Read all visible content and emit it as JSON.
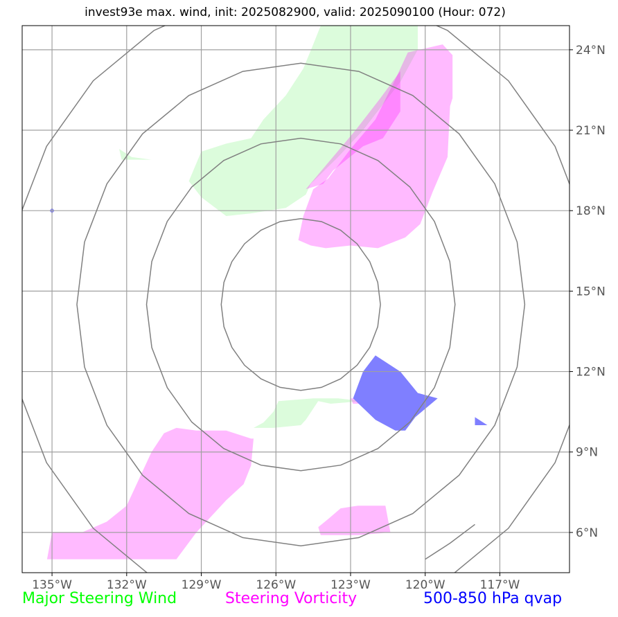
{
  "title": "invest93e max. wind, init: 2025082900, valid: 2025090100 (Hour: 072)",
  "map": {
    "lon_range": [
      -136.2,
      -114.2
    ],
    "lat_range": [
      4.5,
      24.9
    ],
    "lon_ticks": [
      {
        "value": -135,
        "label": "135°W"
      },
      {
        "value": -132,
        "label": "132°W"
      },
      {
        "value": -129,
        "label": "129°W"
      },
      {
        "value": -126,
        "label": "126°W"
      },
      {
        "value": -123,
        "label": "123°W"
      },
      {
        "value": -120,
        "label": "120°W"
      },
      {
        "value": -117,
        "label": "117°W"
      }
    ],
    "lat_ticks": [
      {
        "value": 24,
        "label": "24°N"
      },
      {
        "value": 21,
        "label": "21°N"
      },
      {
        "value": 18,
        "label": "18°N"
      },
      {
        "value": 15,
        "label": "15°N"
      },
      {
        "value": 12,
        "label": "12°N"
      },
      {
        "value": 9,
        "label": "9°N"
      },
      {
        "value": 6,
        "label": "6°N"
      }
    ],
    "range_rings": {
      "center": [
        -125.0,
        14.5
      ],
      "radii_deg": [
        3.2,
        6.2,
        9.0,
        11.8
      ],
      "color": "#808080"
    },
    "layers": [
      {
        "name": "Major Steering Wind",
        "color": "#00ff00",
        "fill": "#dcfcdc",
        "polygons": [
          [
            [
              -124.2,
              24.9
            ],
            [
              -120.3,
              24.9
            ],
            [
              -120.3,
              24.0
            ],
            [
              -121.0,
              22.8
            ],
            [
              -122.5,
              21.0
            ],
            [
              -123.5,
              20.0
            ],
            [
              -124.6,
              19.0
            ],
            [
              -124.8,
              18.6
            ],
            [
              -125.6,
              18.1
            ],
            [
              -127.0,
              17.9
            ],
            [
              -128.0,
              17.8
            ],
            [
              -129.0,
              18.5
            ],
            [
              -129.5,
              19.1
            ],
            [
              -129.0,
              20.2
            ],
            [
              -128.0,
              20.5
            ],
            [
              -127.0,
              20.7
            ],
            [
              -126.5,
              21.4
            ],
            [
              -125.6,
              22.3
            ],
            [
              -124.9,
              23.3
            ],
            [
              -124.5,
              24.2
            ]
          ],
          [
            [
              -132.3,
              20.3
            ],
            [
              -131.8,
              20.0
            ],
            [
              -131.0,
              19.9
            ],
            [
              -132.2,
              19.9
            ]
          ],
          [
            [
              -125.9,
              10.9
            ],
            [
              -124.5,
              11.0
            ],
            [
              -123.5,
              11.0
            ],
            [
              -122.5,
              10.9
            ],
            [
              -123.8,
              10.8
            ],
            [
              -124.3,
              10.9
            ],
            [
              -124.8,
              10.2
            ],
            [
              -125.0,
              10.0
            ],
            [
              -126.1,
              9.9
            ],
            [
              -126.9,
              9.9
            ],
            [
              -126.5,
              10.1
            ],
            [
              -126.1,
              10.5
            ]
          ]
        ]
      },
      {
        "name": "Steering Vorticity",
        "color": "#ff00ff",
        "fill": "#ff00ff",
        "opacity": 0.27,
        "polygons": [
          [
            [
              -120.7,
              23.9
            ],
            [
              -119.3,
              24.2
            ],
            [
              -118.9,
              23.8
            ],
            [
              -118.9,
              22.2
            ],
            [
              -119.0,
              21.9
            ],
            [
              -119.1,
              20.0
            ],
            [
              -119.7,
              18.7
            ],
            [
              -120.2,
              17.5
            ],
            [
              -120.8,
              17.0
            ],
            [
              -121.9,
              16.6
            ],
            [
              -123.0,
              16.7
            ],
            [
              -124.0,
              16.6
            ],
            [
              -124.6,
              16.7
            ],
            [
              -125.1,
              16.9
            ],
            [
              -124.9,
              17.8
            ],
            [
              -124.5,
              18.8
            ],
            [
              -123.9,
              19.2
            ],
            [
              -123.0,
              20.3
            ],
            [
              -122.0,
              21.4
            ],
            [
              -121.2,
              22.9
            ]
          ],
          [
            [
              -121.0,
              23.2
            ],
            [
              -121.0,
              21.7
            ],
            [
              -121.7,
              20.7
            ],
            [
              -122.5,
              20.4
            ],
            [
              -123.7,
              19.5
            ],
            [
              -124.1,
              19.0
            ],
            [
              -124.8,
              18.8
            ],
            [
              -123.8,
              19.9
            ],
            [
              -122.8,
              21.0
            ],
            [
              -121.8,
              22.2
            ]
          ],
          [
            [
              -135.2,
              5.0
            ],
            [
              -132.9,
              5.0
            ],
            [
              -131.2,
              5.0
            ],
            [
              -130.0,
              5.0
            ],
            [
              -129.6,
              5.5
            ],
            [
              -129.2,
              6.0
            ],
            [
              -128.0,
              7.2
            ],
            [
              -127.3,
              7.8
            ],
            [
              -127.0,
              8.5
            ],
            [
              -126.9,
              9.5
            ],
            [
              -127.0,
              9.5
            ],
            [
              -128.0,
              9.8
            ],
            [
              -129.2,
              9.8
            ],
            [
              -130.0,
              9.9
            ],
            [
              -130.5,
              9.7
            ],
            [
              -131.0,
              9.0
            ],
            [
              -132.0,
              7.0
            ],
            [
              -132.8,
              6.4
            ],
            [
              -133.8,
              6.0
            ],
            [
              -135.0,
              6.0
            ]
          ],
          [
            [
              -124.2,
              5.9
            ],
            [
              -123.1,
              5.9
            ],
            [
              -122.7,
              5.9
            ],
            [
              -121.4,
              6.0
            ],
            [
              -121.6,
              7.0
            ],
            [
              -122.7,
              7.0
            ],
            [
              -123.4,
              6.9
            ],
            [
              -123.9,
              6.5
            ],
            [
              -124.3,
              6.2
            ]
          ],
          [
            [
              -123.0,
              11.0
            ],
            [
              -122.2,
              11.0
            ],
            [
              -121.5,
              10.9
            ],
            [
              -122.3,
              10.8
            ],
            [
              -122.9,
              10.8
            ]
          ]
        ]
      },
      {
        "name": "500-850 hPa qvap",
        "color": "#0000ff",
        "fill": "#7f7fff",
        "polygons": [
          [
            [
              -122.5,
              12.0
            ],
            [
              -122.0,
              12.6
            ],
            [
              -121.0,
              12.0
            ],
            [
              -120.3,
              11.2
            ],
            [
              -119.5,
              11.0
            ],
            [
              -120.4,
              10.3
            ],
            [
              -120.8,
              9.8
            ],
            [
              -121.2,
              9.8
            ],
            [
              -122.0,
              10.2
            ],
            [
              -122.9,
              11.0
            ]
          ],
          [
            [
              -118.0,
              10.3
            ],
            [
              -117.5,
              10.0
            ],
            [
              -118.0,
              10.0
            ]
          ],
          [
            [
              -135.0,
              18.1
            ],
            [
              -134.9,
              18.0
            ],
            [
              -135.0,
              17.9
            ],
            [
              -135.1,
              18.0
            ]
          ]
        ]
      }
    ],
    "partial_ring_segment": {
      "points": [
        [
          -120.0,
          5.0
        ],
        [
          -119.0,
          5.6
        ],
        [
          -118.0,
          6.3
        ]
      ]
    }
  },
  "legend": [
    {
      "label": "Major Steering Wind",
      "color": "#00ff00"
    },
    {
      "label": "Steering Vorticity",
      "color": "#ff00ff"
    },
    {
      "label": "500-850 hPa qvap",
      "color": "#0000ff"
    }
  ]
}
